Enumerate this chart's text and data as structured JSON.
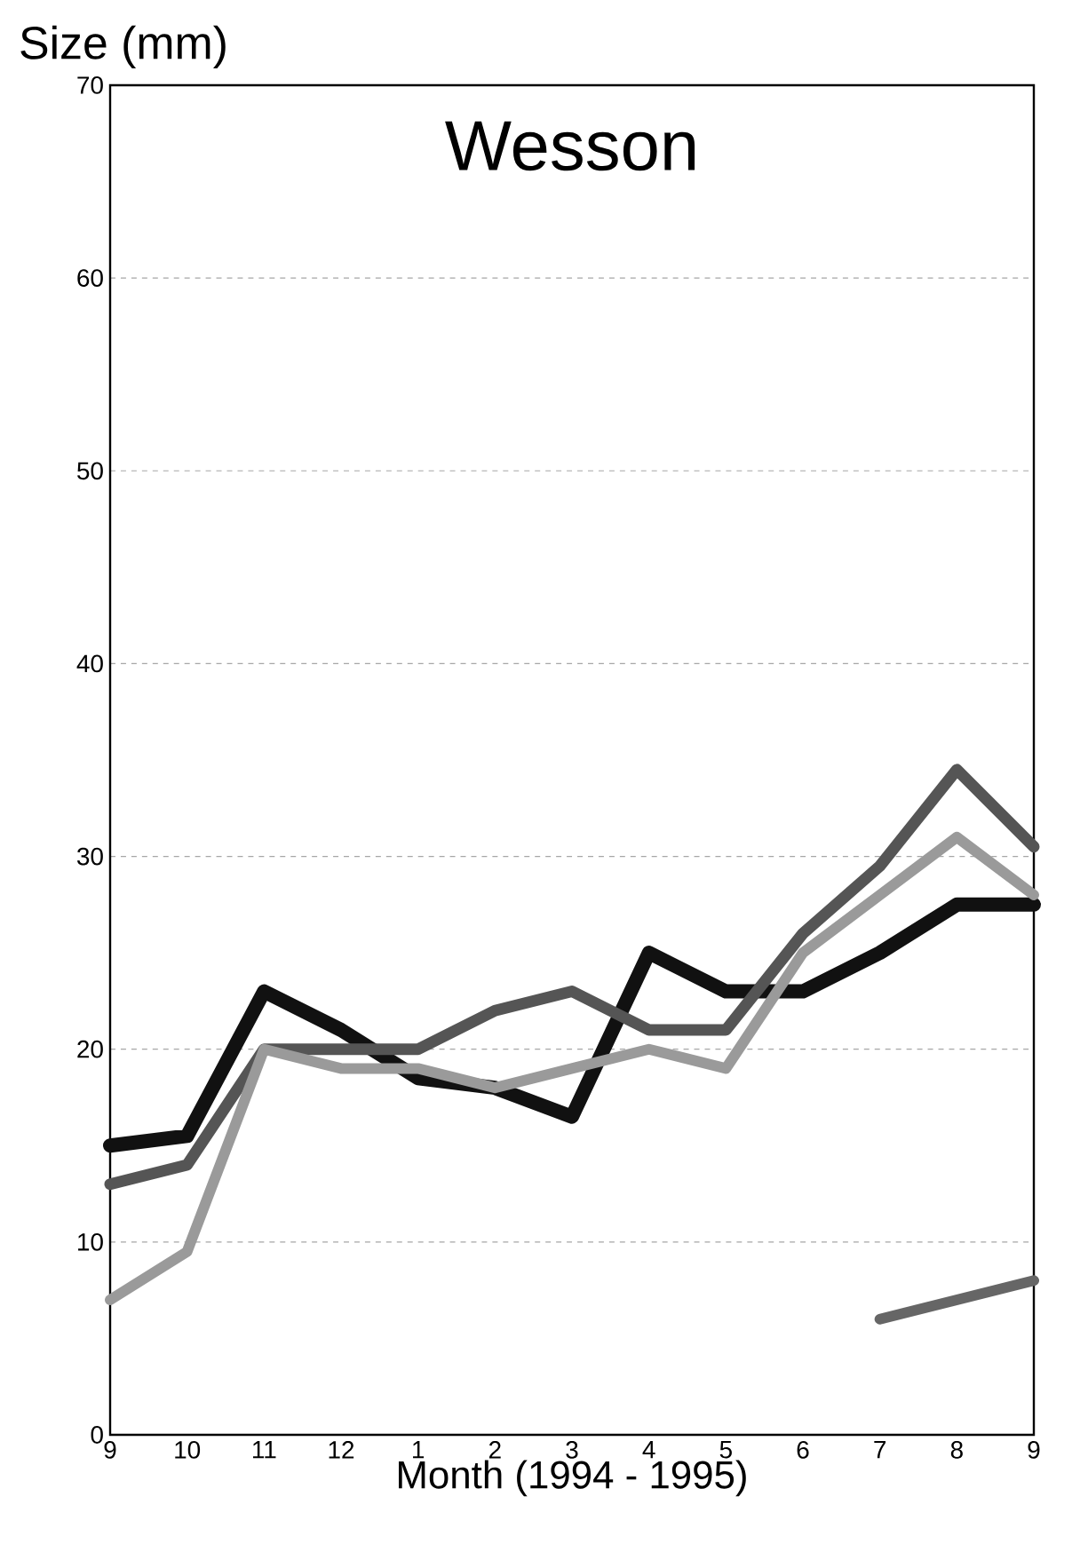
{
  "chart_data": {
    "type": "line",
    "title": "Wesson",
    "xlabel": "Month (1994 - 1995)",
    "ylabel": "Size (mm)",
    "categories": [
      "9",
      "10",
      "11",
      "12",
      "1",
      "2",
      "3",
      "4",
      "5",
      "6",
      "7",
      "8",
      "9"
    ],
    "series": [
      {
        "color": "#111111",
        "values": [
          15,
          15.5,
          23,
          21,
          18.5,
          18,
          16.5,
          25,
          23,
          23,
          25,
          27.5,
          27.5
        ]
      },
      {
        "color": "#555555",
        "values": [
          13,
          14,
          20,
          20,
          20,
          22,
          23,
          21,
          21,
          26,
          29.5,
          34.5,
          30.5
        ]
      },
      {
        "color": "#9a9a9a",
        "values": [
          7,
          9.5,
          20,
          19,
          19,
          18,
          19,
          20,
          19,
          25,
          28,
          31,
          28
        ]
      },
      {
        "color": "#666666",
        "values": [
          null,
          null,
          null,
          null,
          null,
          null,
          null,
          null,
          null,
          null,
          6,
          7,
          8
        ]
      }
    ],
    "ylim": [
      0,
      70
    ],
    "yticks": [
      0,
      10,
      20,
      30,
      40,
      50,
      60,
      70
    ],
    "grid": "y",
    "marker": "none",
    "line_style": "solid"
  }
}
